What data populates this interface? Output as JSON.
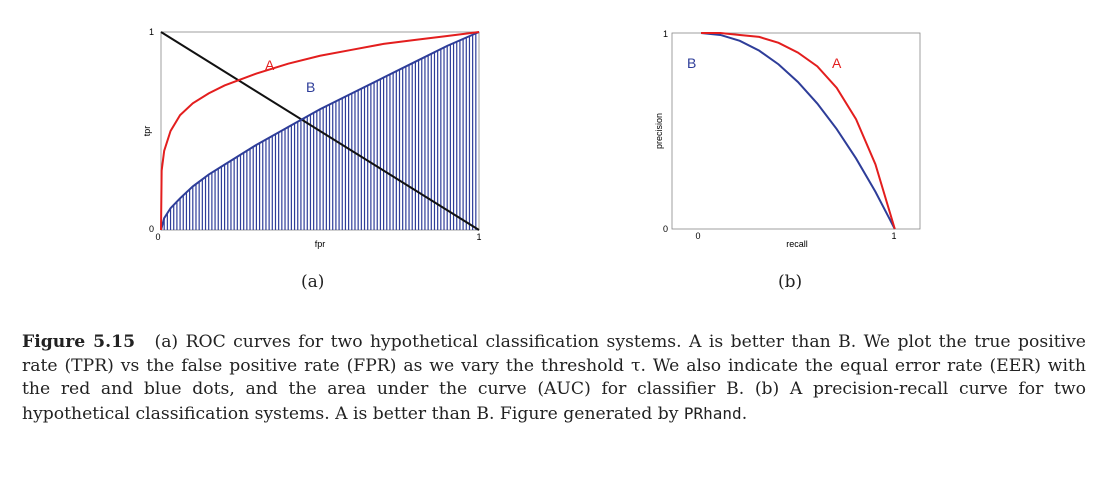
{
  "chart_data": [
    {
      "type": "area",
      "panel": "(a)",
      "xlabel": "fpr",
      "ylabel": "tpr",
      "xlim": [
        0,
        1
      ],
      "ylim": [
        0,
        1
      ],
      "x_ticks": [
        "0",
        "1"
      ],
      "y_ticks": [
        "0",
        "1"
      ],
      "grid": false,
      "series": [
        {
          "name": "A",
          "color": "#e31e1e",
          "x": [
            0,
            0.002,
            0.01,
            0.03,
            0.06,
            0.1,
            0.15,
            0.2,
            0.3,
            0.4,
            0.5,
            0.6,
            0.7,
            0.8,
            0.9,
            1.0
          ],
          "y": [
            0,
            0.3,
            0.4,
            0.5,
            0.58,
            0.64,
            0.69,
            0.73,
            0.79,
            0.84,
            0.88,
            0.91,
            0.94,
            0.96,
            0.98,
            1.0
          ]
        },
        {
          "name": "B",
          "color": "#2e3d99",
          "x": [
            0,
            0.01,
            0.03,
            0.06,
            0.1,
            0.15,
            0.2,
            0.3,
            0.4,
            0.5,
            0.6,
            0.7,
            0.8,
            0.9,
            1.0
          ],
          "y": [
            0,
            0.06,
            0.11,
            0.16,
            0.22,
            0.28,
            0.33,
            0.43,
            0.52,
            0.61,
            0.69,
            0.77,
            0.85,
            0.93,
            1.0
          ]
        }
      ],
      "eer_line": {
        "x": [
          0,
          1
        ],
        "y": [
          1,
          0
        ],
        "color": "#111111"
      },
      "shaded_area_under": "B"
    },
    {
      "type": "line",
      "panel": "(b)",
      "xlabel": "recall",
      "ylabel": "precision",
      "xlim": [
        -0.15,
        1.13
      ],
      "ylim": [
        0,
        1
      ],
      "x_ticks": [
        "0",
        "1"
      ],
      "y_ticks": [
        "0",
        "1"
      ],
      "grid": false,
      "series": [
        {
          "name": "A",
          "color": "#e31e1e",
          "x": [
            0,
            0.1,
            0.2,
            0.3,
            0.4,
            0.5,
            0.6,
            0.7,
            0.8,
            0.9,
            1.0
          ],
          "y": [
            1.0,
            1.0,
            0.99,
            0.98,
            0.95,
            0.9,
            0.83,
            0.72,
            0.56,
            0.33,
            0.0
          ]
        },
        {
          "name": "B",
          "color": "#2e3d99",
          "x": [
            0,
            0.1,
            0.2,
            0.3,
            0.4,
            0.5,
            0.6,
            0.7,
            0.8,
            0.9,
            1.0
          ],
          "y": [
            1.0,
            0.99,
            0.96,
            0.91,
            0.84,
            0.75,
            0.64,
            0.51,
            0.36,
            0.19,
            0.0
          ]
        }
      ]
    }
  ],
  "panels": {
    "a_label": "(a)",
    "b_label": "(b)",
    "a_series_labels": [
      "A",
      "B"
    ],
    "b_series_labels": [
      "B",
      "A"
    ]
  },
  "caption": {
    "fignum": "Figure 5.15",
    "text": "(a) ROC curves for two hypothetical classification systems. A is better than B. We plot the true positive rate (TPR) vs the false positive rate (FPR) as we vary the threshold τ. We also indicate the equal error rate (EER) with the red and blue dots, and the area under the curve (AUC) for classifier B. (b) A precision-recall curve for two hypothetical classification systems. A is better than B. Figure generated by",
    "code": "PRhand",
    "end": "."
  }
}
